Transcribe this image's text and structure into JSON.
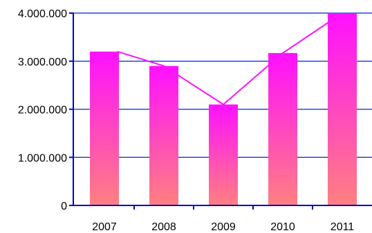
{
  "chart_data": {
    "type": "bar",
    "categories": [
      "2007",
      "2008",
      "2009",
      "2010",
      "2011"
    ],
    "series": [
      {
        "values": [
          3200000,
          2900000,
          2100000,
          3170000,
          4000000
        ]
      }
    ],
    "overlay_line": {
      "values": [
        3200000,
        2900000,
        2100000,
        3170000,
        4000000
      ]
    },
    "y_ticks": [
      {
        "value": 0,
        "label": "0"
      },
      {
        "value": 1000000,
        "label": "1.000.000"
      },
      {
        "value": 2000000,
        "label": "2.000.000"
      },
      {
        "value": 3000000,
        "label": "3.000.000"
      },
      {
        "value": 4000000,
        "label": "4.000.000"
      }
    ],
    "ylim": [
      0,
      4000000
    ],
    "grid": true,
    "colors": {
      "bar_top": "#ff10ff",
      "bar_bottom": "#ff8080",
      "line": "#ff10ff",
      "grid": "#2244dd",
      "axis": "#0000cc"
    }
  }
}
